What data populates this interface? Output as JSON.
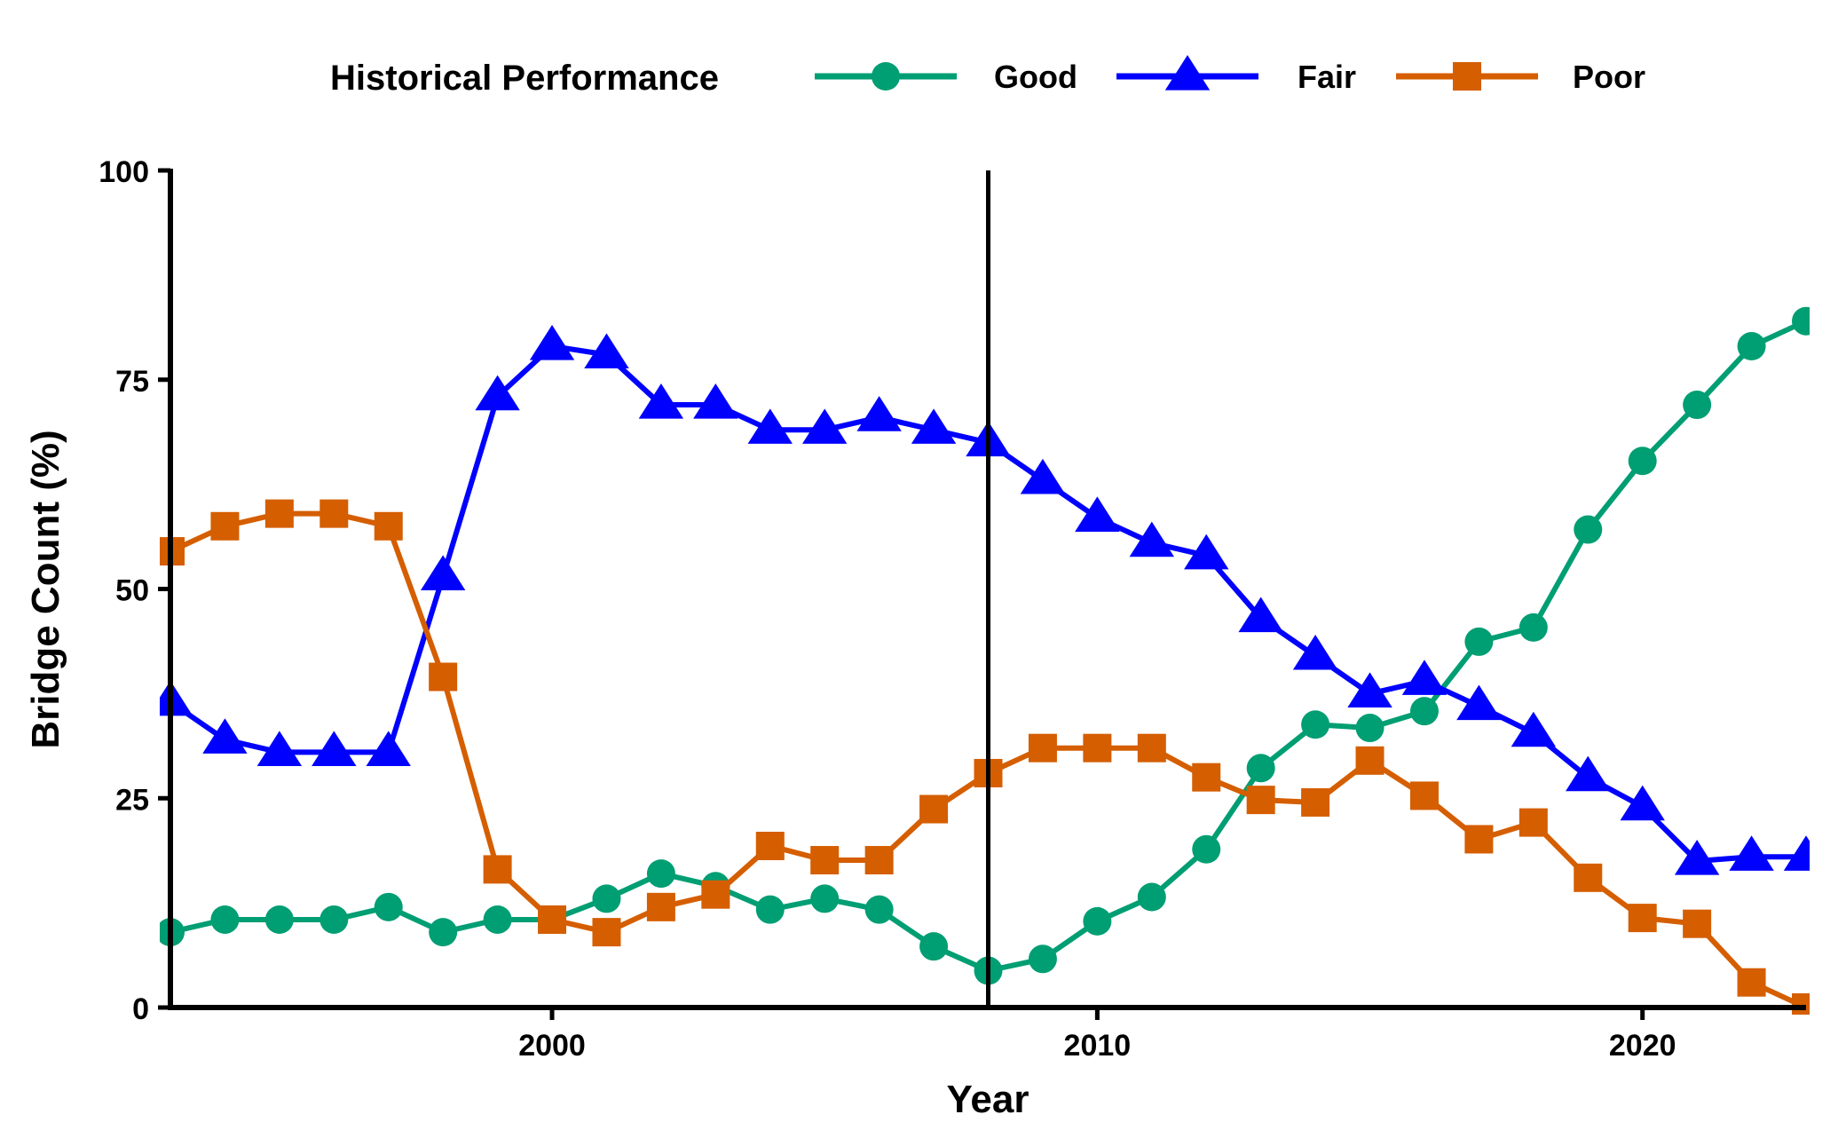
{
  "chart_data": {
    "type": "line",
    "title": "",
    "xlabel": "Year",
    "ylabel": "Bridge Count (%)",
    "xlim": [
      1993,
      2023
    ],
    "ylim": [
      0,
      100
    ],
    "x_ticks": [
      2000,
      2010,
      2020
    ],
    "y_ticks": [
      0,
      25,
      50,
      75,
      100
    ],
    "grid": false,
    "reference_line_x": 2008,
    "legend": {
      "title": "Historical Performance",
      "placement": "top"
    },
    "x": [
      1993,
      1994,
      1995,
      1996,
      1997,
      1998,
      1999,
      2000,
      2001,
      2002,
      2003,
      2004,
      2005,
      2006,
      2007,
      2008,
      2009,
      2010,
      2011,
      2012,
      2013,
      2014,
      2015,
      2016,
      2017,
      2018,
      2019,
      2020,
      2021,
      2022,
      2023
    ],
    "series": [
      {
        "name": "Good",
        "color": "#009e73",
        "marker": "circle",
        "values": [
          9,
          10.5,
          10.5,
          10.5,
          12,
          9,
          10.5,
          10.5,
          13,
          16,
          14.5,
          11.7,
          13,
          11.7,
          7.3,
          4.4,
          5.8,
          10.3,
          13.2,
          18.9,
          28.6,
          33.8,
          33.4,
          35.4,
          43.7,
          45.4,
          57.1,
          65.3,
          72,
          79,
          82
        ]
      },
      {
        "name": "Fair",
        "color": "#0000ff",
        "marker": "triangle",
        "values": [
          36.5,
          32,
          30.5,
          30.5,
          30.5,
          51.5,
          73,
          79,
          78,
          72,
          72,
          69,
          69,
          70.5,
          69,
          67.5,
          63,
          58.5,
          55.5,
          54,
          46.5,
          42,
          37.5,
          39,
          36,
          32.8,
          27.5,
          24,
          17.5,
          18,
          18
        ]
      },
      {
        "name": "Poor",
        "color": "#d55e00",
        "marker": "square",
        "values": [
          54.5,
          57.5,
          59,
          59,
          57.5,
          39.5,
          16.5,
          10.5,
          9,
          12,
          13.5,
          19.3,
          17.6,
          17.6,
          23.7,
          28,
          31,
          31,
          31,
          27.5,
          24.8,
          24.5,
          29.5,
          25.3,
          20.1,
          22.1,
          15.5,
          10.7,
          10,
          3,
          0
        ]
      }
    ]
  }
}
